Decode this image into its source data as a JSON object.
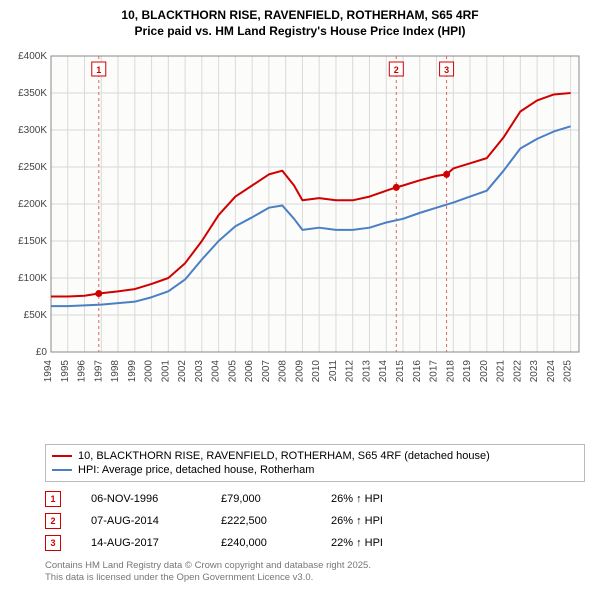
{
  "title_line1": "10, BLACKTHORN RISE, RAVENFIELD, ROTHERHAM, S65 4RF",
  "title_line2": "Price paid vs. HM Land Registry's House Price Index (HPI)",
  "chart": {
    "type": "line",
    "background_color": "#ffffff",
    "plot_bg": "#fcfcfa",
    "grid_color": "#d9d9d9",
    "axis_color": "#888888",
    "x_years": [
      1994,
      1995,
      1996,
      1997,
      1998,
      1999,
      2000,
      2001,
      2002,
      2003,
      2004,
      2005,
      2006,
      2007,
      2008,
      2009,
      2010,
      2011,
      2012,
      2013,
      2014,
      2015,
      2016,
      2017,
      2018,
      2019,
      2020,
      2021,
      2022,
      2023,
      2024,
      2025
    ],
    "xlim": [
      1994,
      2025.5
    ],
    "ylim": [
      0,
      400000
    ],
    "ytick_step": 50000,
    "ytick_labels": [
      "£0",
      "£50K",
      "£100K",
      "£150K",
      "£200K",
      "£250K",
      "£300K",
      "£350K",
      "£400K"
    ],
    "series": [
      {
        "name": "10, BLACKTHORN RISE, RAVENFIELD, ROTHERHAM, S65 4RF (detached house)",
        "color": "#d00000",
        "line_width": 2,
        "data": [
          [
            1994,
            75000
          ],
          [
            1995,
            75000
          ],
          [
            1996,
            76000
          ],
          [
            1996.85,
            79000
          ],
          [
            1998,
            82000
          ],
          [
            1999,
            85000
          ],
          [
            2000,
            92000
          ],
          [
            2001,
            100000
          ],
          [
            2002,
            120000
          ],
          [
            2003,
            150000
          ],
          [
            2004,
            185000
          ],
          [
            2005,
            210000
          ],
          [
            2006,
            225000
          ],
          [
            2007,
            240000
          ],
          [
            2007.8,
            245000
          ],
          [
            2008.5,
            225000
          ],
          [
            2009,
            205000
          ],
          [
            2010,
            208000
          ],
          [
            2011,
            205000
          ],
          [
            2012,
            205000
          ],
          [
            2013,
            210000
          ],
          [
            2014,
            218000
          ],
          [
            2014.6,
            222500
          ],
          [
            2015,
            225000
          ],
          [
            2016,
            232000
          ],
          [
            2017,
            238000
          ],
          [
            2017.6,
            240000
          ],
          [
            2018,
            248000
          ],
          [
            2019,
            255000
          ],
          [
            2020,
            262000
          ],
          [
            2021,
            290000
          ],
          [
            2022,
            325000
          ],
          [
            2023,
            340000
          ],
          [
            2024,
            348000
          ],
          [
            2025,
            350000
          ]
        ]
      },
      {
        "name": "HPI: Average price, detached house, Rotherham",
        "color": "#4a7fc4",
        "line_width": 2,
        "data": [
          [
            1994,
            62000
          ],
          [
            1995,
            62000
          ],
          [
            1996,
            63000
          ],
          [
            1997,
            64000
          ],
          [
            1998,
            66000
          ],
          [
            1999,
            68000
          ],
          [
            2000,
            74000
          ],
          [
            2001,
            82000
          ],
          [
            2002,
            98000
          ],
          [
            2003,
            125000
          ],
          [
            2004,
            150000
          ],
          [
            2005,
            170000
          ],
          [
            2006,
            182000
          ],
          [
            2007,
            195000
          ],
          [
            2007.8,
            198000
          ],
          [
            2008.5,
            180000
          ],
          [
            2009,
            165000
          ],
          [
            2010,
            168000
          ],
          [
            2011,
            165000
          ],
          [
            2012,
            165000
          ],
          [
            2013,
            168000
          ],
          [
            2014,
            175000
          ],
          [
            2015,
            180000
          ],
          [
            2016,
            188000
          ],
          [
            2017,
            195000
          ],
          [
            2018,
            202000
          ],
          [
            2019,
            210000
          ],
          [
            2020,
            218000
          ],
          [
            2021,
            245000
          ],
          [
            2022,
            275000
          ],
          [
            2023,
            288000
          ],
          [
            2024,
            298000
          ],
          [
            2025,
            305000
          ]
        ]
      }
    ],
    "markers": [
      {
        "n": "1",
        "year": 1996.85,
        "value": 79000
      },
      {
        "n": "2",
        "year": 2014.6,
        "value": 222500
      },
      {
        "n": "3",
        "year": 2017.6,
        "value": 240000
      }
    ],
    "marker_color": "#d00000",
    "marker_line_color": "#d66"
  },
  "legend": {
    "items": [
      {
        "color": "#d00000",
        "label": "10, BLACKTHORN RISE, RAVENFIELD, ROTHERHAM, S65 4RF (detached house)"
      },
      {
        "color": "#4a7fc4",
        "label": "HPI: Average price, detached house, Rotherham"
      }
    ]
  },
  "marker_rows": [
    {
      "n": "1",
      "date": "06-NOV-1996",
      "price": "£79,000",
      "hpi": "26% ↑ HPI"
    },
    {
      "n": "2",
      "date": "07-AUG-2014",
      "price": "£222,500",
      "hpi": "26% ↑ HPI"
    },
    {
      "n": "3",
      "date": "14-AUG-2017",
      "price": "£240,000",
      "hpi": "22% ↑ HPI"
    }
  ],
  "footer_line1": "Contains HM Land Registry data © Crown copyright and database right 2025.",
  "footer_line2": "This data is licensed under the Open Government Licence v3.0."
}
